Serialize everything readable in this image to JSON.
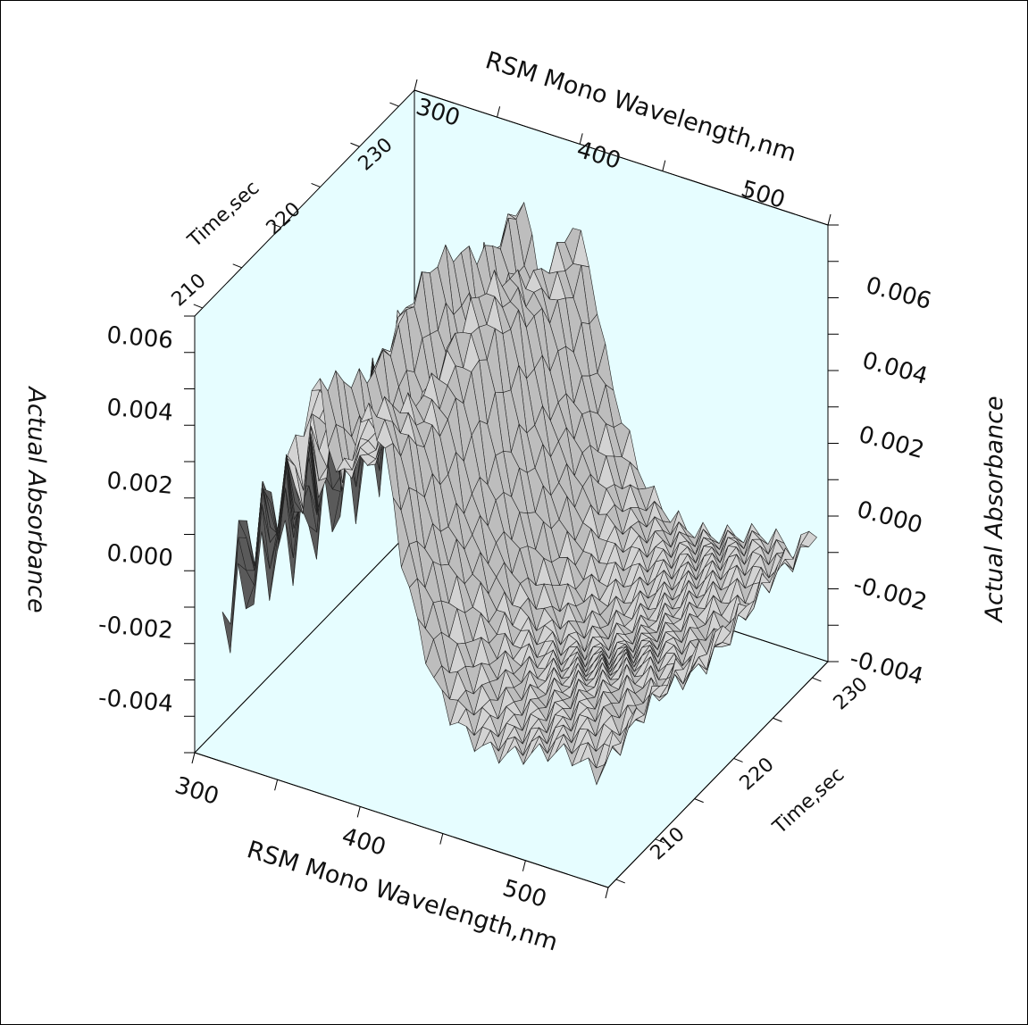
{
  "chart_data": {
    "type": "surface3d",
    "title": "",
    "x_axis": {
      "label": "RSM Mono Wavelength,nm",
      "range": [
        300,
        550
      ],
      "ticks": [
        300,
        400,
        500
      ]
    },
    "y_axis": {
      "label": "Time,sec",
      "range": [
        204,
        232
      ],
      "ticks": [
        210,
        220,
        230
      ]
    },
    "z_axis": {
      "label": "Actual Absorbance",
      "range": [
        -0.005,
        0.007
      ],
      "ticks": [
        "-0.004",
        "-0.002",
        "0.000",
        "0.002",
        "0.004",
        "0.006"
      ]
    },
    "surface_profile": {
      "wavelength_nm": [
        300,
        310,
        320,
        330,
        340,
        350,
        360,
        370,
        380,
        390,
        400,
        410,
        420,
        430,
        440,
        450,
        460,
        470,
        480,
        490,
        500,
        510,
        520,
        530,
        540,
        550
      ],
      "absorbance": [
        -0.004,
        -0.002,
        0.0005,
        0.0015,
        0.002,
        0.0028,
        0.0045,
        0.0063,
        0.0035,
        0.0044,
        0.0058,
        0.0048,
        0.002,
        0.0002,
        -0.0012,
        -0.002,
        -0.0024,
        -0.0026,
        -0.0026,
        -0.0025,
        -0.0023,
        -0.0021,
        -0.002,
        -0.0021,
        -0.0024,
        -0.001
      ]
    },
    "colors": {
      "box_background": "#e6fdff",
      "surface_top": "#d3d3d3",
      "surface_front": "#5a5a5a",
      "grid_line": "#111111"
    }
  }
}
